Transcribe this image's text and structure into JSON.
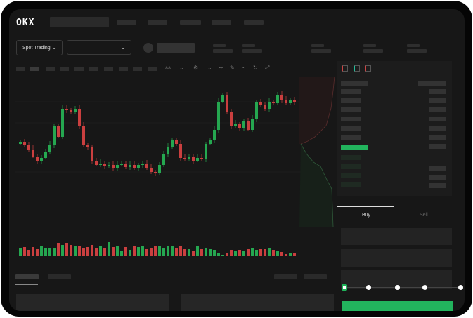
{
  "header": {
    "logo": "OKX",
    "mode_select": "Spot Trading"
  },
  "trade": {
    "buy_tab": "Buy",
    "sell_tab": "Sell",
    "active_tab": "Buy"
  },
  "colors": {
    "up": "#25a750",
    "down": "#ca3f3f",
    "accent": "#1fb35a",
    "background": "#171717"
  },
  "icons": {
    "chevron": "chevron-down-icon",
    "orderbook_views": [
      "orderbook-both-icon",
      "orderbook-bids-icon",
      "orderbook-asks-icon"
    ]
  },
  "slider": {
    "value_percent": 0,
    "stops": [
      0,
      25,
      50,
      75,
      100
    ]
  },
  "chart_data": {
    "type": "candlestick",
    "closes": [
      93,
      88,
      82,
      72,
      65,
      70,
      78,
      88,
      115,
      100,
      140,
      138,
      135,
      140,
      115,
      88,
      85,
      65,
      60,
      62,
      58,
      60,
      55,
      60,
      62,
      57,
      60,
      55,
      60,
      62,
      55,
      50,
      48,
      60,
      75,
      85,
      95,
      90,
      70,
      68,
      72,
      66,
      70,
      68,
      90,
      95,
      110,
      150,
      160,
      135,
      115,
      118,
      112,
      122,
      110,
      125,
      150,
      145,
      140,
      150,
      148,
      160,
      152,
      148,
      153,
      150
    ],
    "volumes": [
      12,
      13,
      9,
      13,
      11,
      15,
      12,
      12,
      12,
      19,
      16,
      19,
      16,
      14,
      14,
      12,
      13,
      16,
      12,
      14,
      12,
      20,
      13,
      14,
      8,
      13,
      9,
      14,
      13,
      14,
      11,
      12,
      15,
      14,
      12,
      14,
      15,
      12,
      14,
      10,
      10,
      8,
      14,
      11,
      12,
      10,
      9,
      4,
      2,
      5,
      9,
      8,
      9,
      8,
      10,
      12,
      9,
      10,
      10,
      12,
      9,
      7,
      6,
      3,
      5,
      5
    ]
  }
}
